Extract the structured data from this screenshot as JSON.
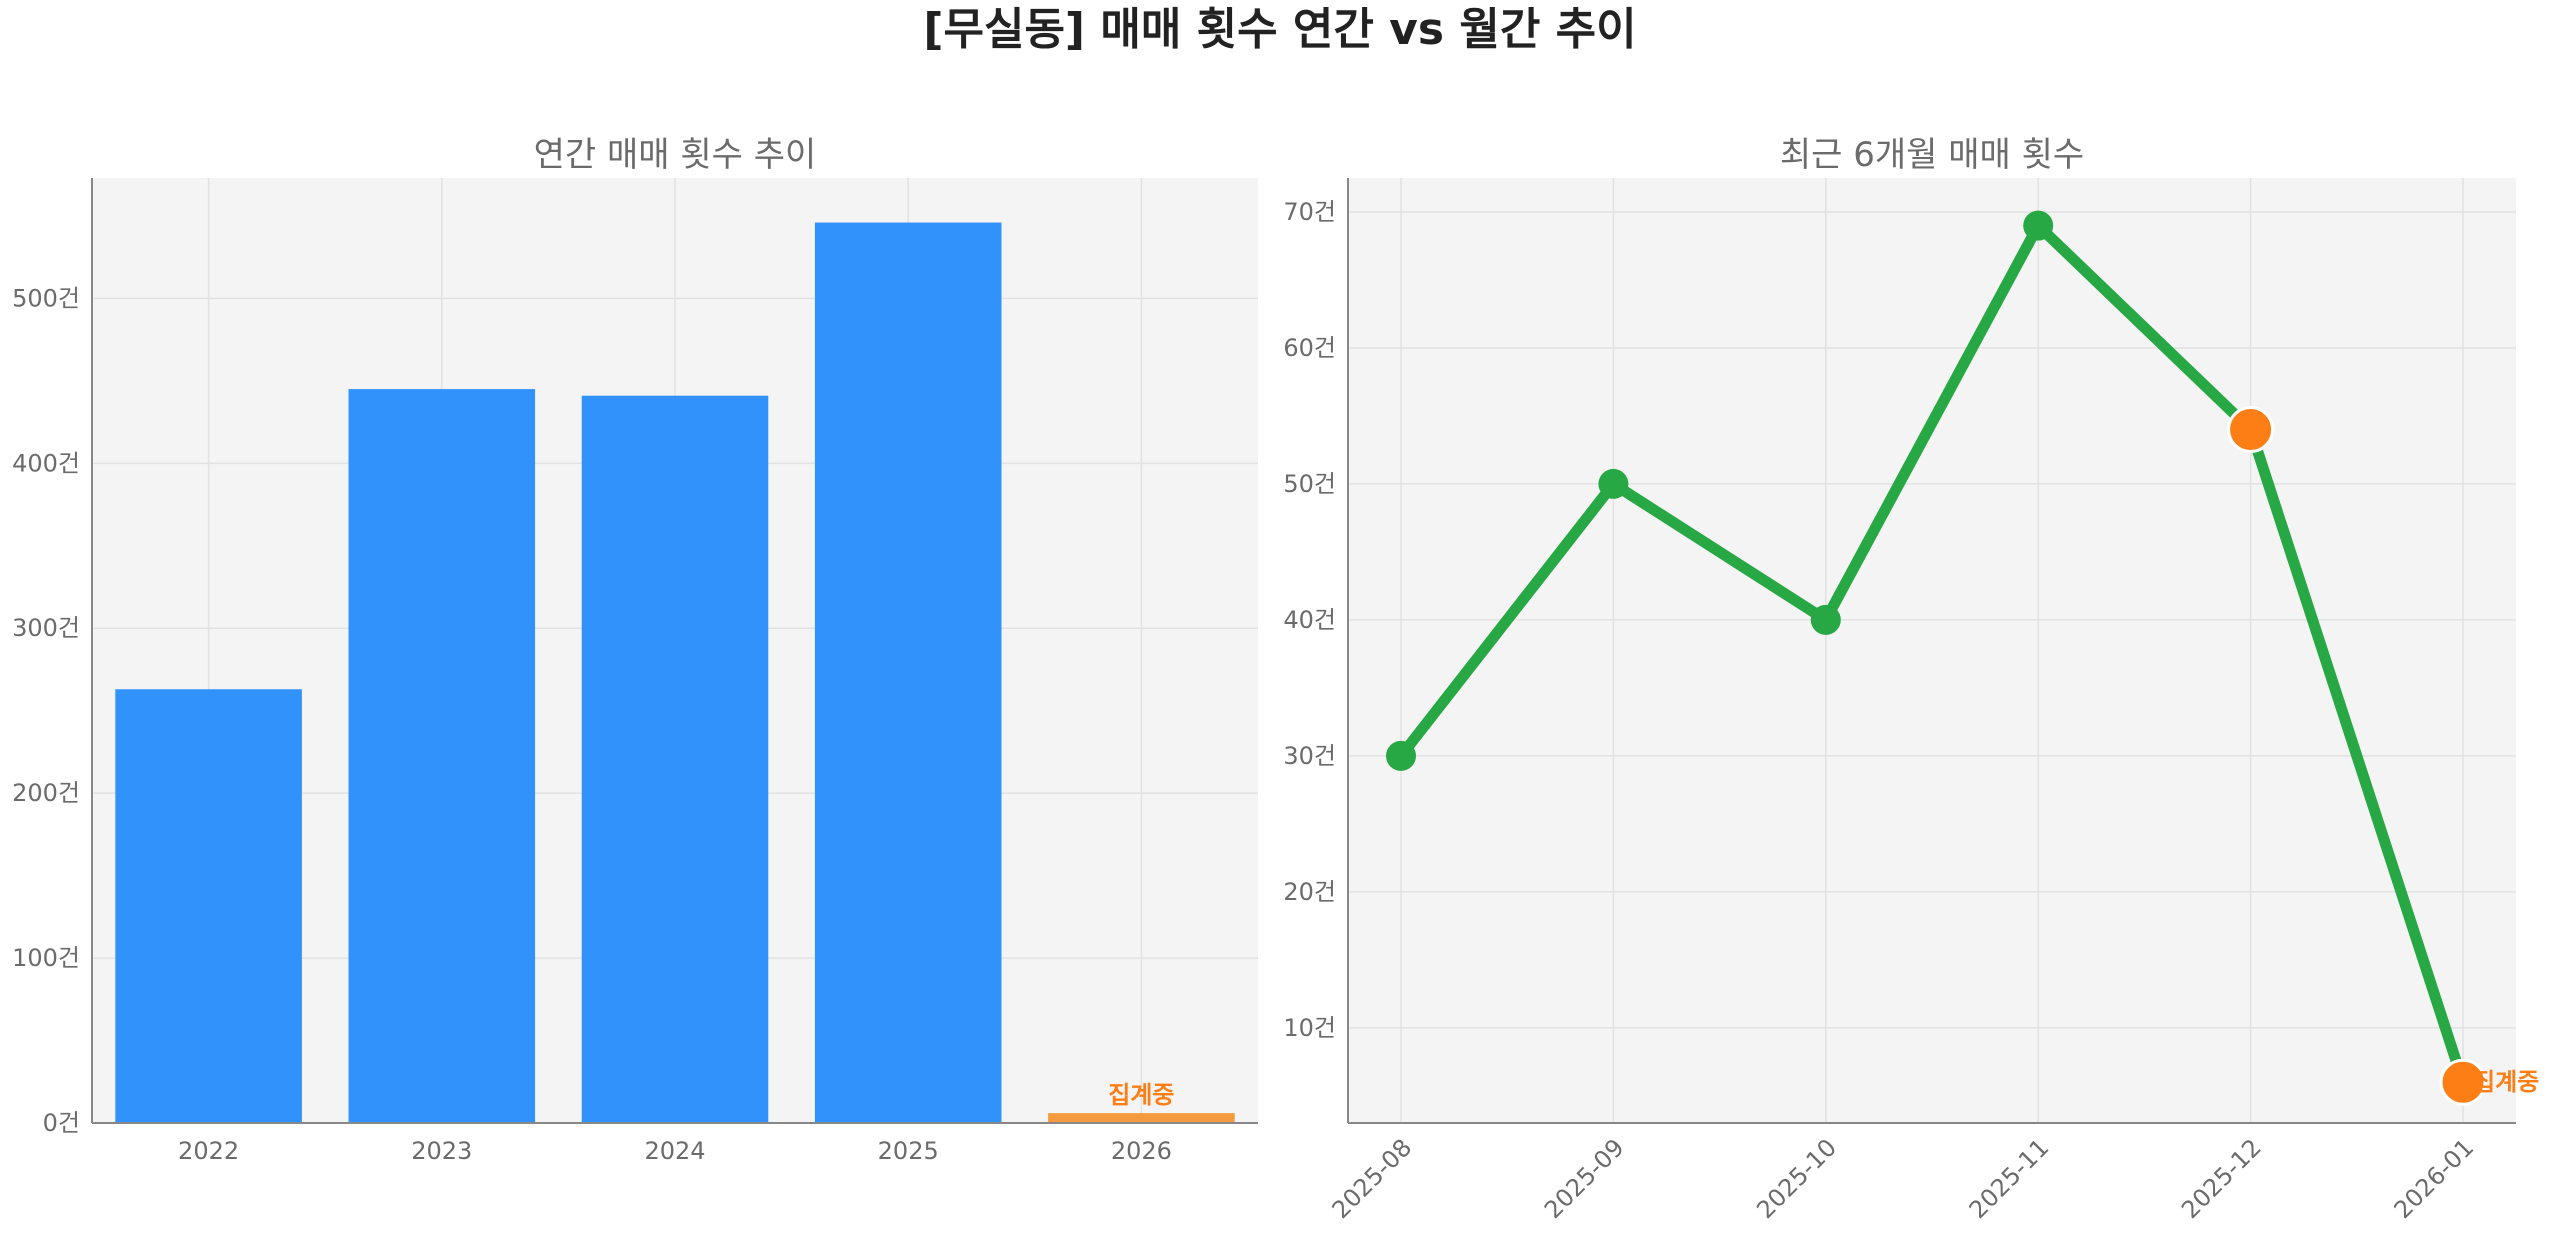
{
  "title": "[무실동] 매매 횟수 연간 vs 월간 추이",
  "chart_data": [
    {
      "type": "bar",
      "title": "연간 매매 횟수 추이",
      "categories": [
        "2022",
        "2023",
        "2024",
        "2025",
        "2026"
      ],
      "values": [
        263,
        445,
        441,
        546,
        6
      ],
      "bar_colors": [
        "#3192fb",
        "#3192fb",
        "#3192fb",
        "#3192fb",
        "#f39a3e"
      ],
      "annotations": [
        {
          "category": "2026",
          "text": "집계중"
        }
      ],
      "ylim": [
        0,
        573
      ],
      "yticks": [
        0,
        100,
        200,
        300,
        400,
        500
      ],
      "ytick_labels": [
        "0건",
        "100건",
        "200건",
        "300건",
        "400건",
        "500건"
      ],
      "grid": true,
      "xlabel": "",
      "ylabel": ""
    },
    {
      "type": "line",
      "title": "최근 6개월 매매 횟수",
      "x": [
        "2025-08",
        "2025-09",
        "2025-10",
        "2025-11",
        "2025-12",
        "2026-01"
      ],
      "series": [
        {
          "values": [
            30,
            50,
            40,
            69,
            54,
            6
          ],
          "color": "#28a745"
        }
      ],
      "highlight_points": [
        {
          "x": "2025-12",
          "color": "#fd7e14"
        },
        {
          "x": "2026-01",
          "color": "#fd7e14"
        }
      ],
      "annotations": [
        {
          "x": "2026-01",
          "text": "집계중"
        }
      ],
      "ylim": [
        3,
        72.5
      ],
      "yticks": [
        10,
        20,
        30,
        40,
        50,
        60,
        70
      ],
      "ytick_labels": [
        "10건",
        "20건",
        "30건",
        "40건",
        "50건",
        "60건",
        "70건"
      ],
      "grid": true,
      "xlabel": "",
      "ylabel": ""
    }
  ]
}
